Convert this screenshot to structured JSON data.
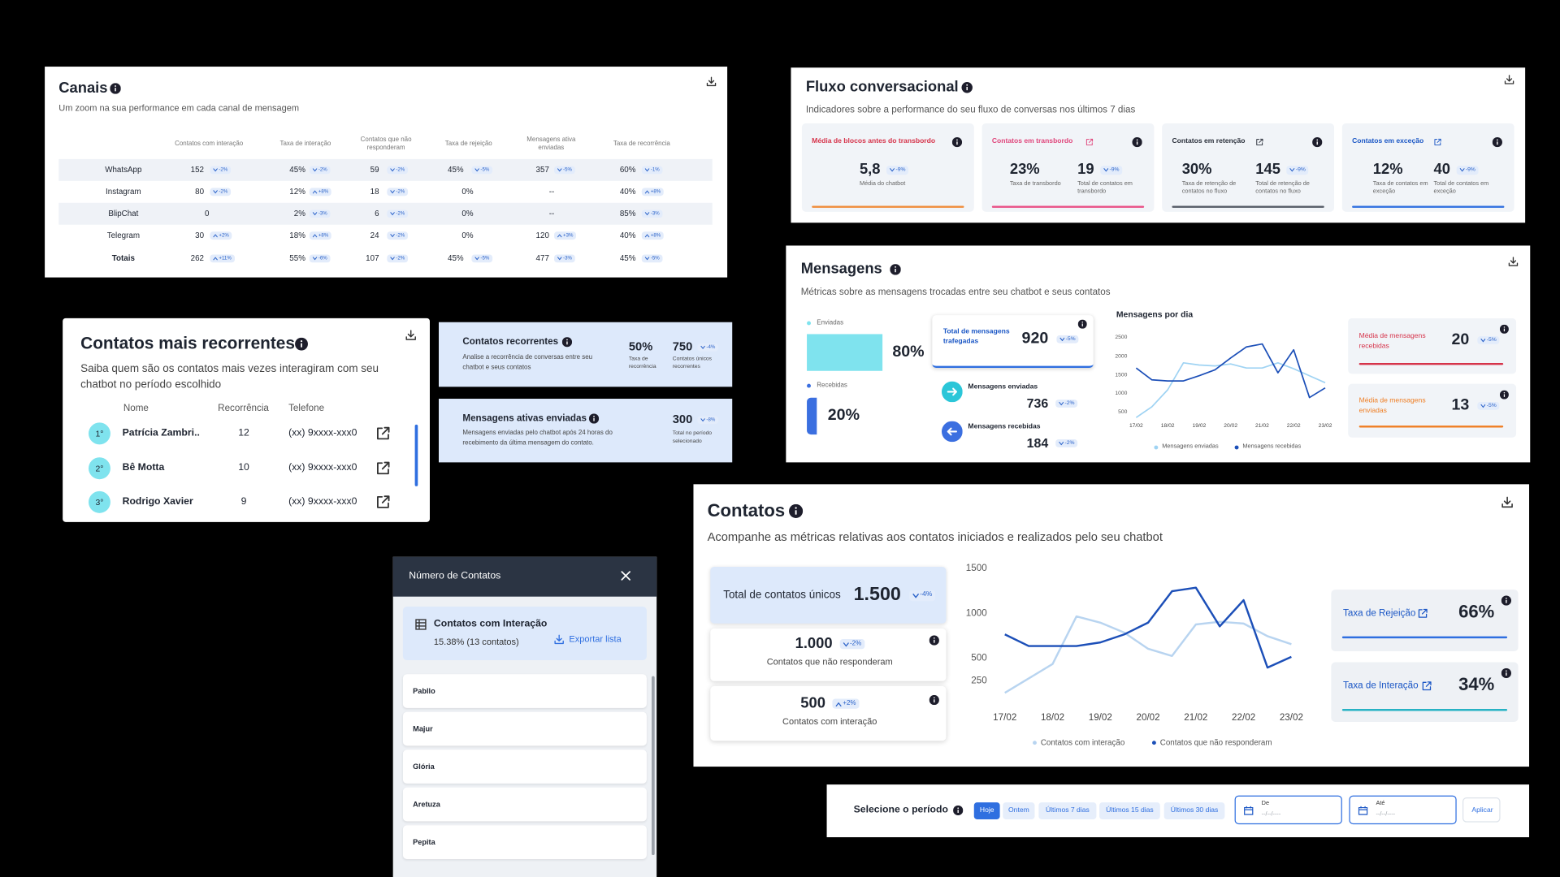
{
  "canais": {
    "title": "Canais",
    "subtitle": "Um zoom na sua performance em cada canal de mensagem",
    "columns": [
      "Contatos com interação",
      "Taxa de interação",
      "Contatos que não responderam",
      "Taxa de rejeição",
      "Mensagens ativa enviadas",
      "Taxa de recorrência"
    ],
    "rows": [
      {
        "name": "WhatsApp",
        "cells": [
          [
            "152",
            "-2%"
          ],
          [
            "45%",
            "-2%"
          ],
          [
            "59",
            "-2%"
          ],
          [
            "45%",
            "-5%"
          ],
          [
            "357",
            "-5%"
          ],
          [
            "60%",
            "-1%"
          ]
        ]
      },
      {
        "name": "Instagram",
        "cells": [
          [
            "80",
            "-2%"
          ],
          [
            "12%",
            "+8%"
          ],
          [
            "18",
            "-2%"
          ],
          [
            "0%"
          ],
          [
            "--"
          ],
          [
            "40%",
            "+8%"
          ]
        ]
      },
      {
        "name": "BlipChat",
        "cells": [
          [
            "0"
          ],
          [
            "2%",
            "-3%"
          ],
          [
            "6",
            "-2%"
          ],
          [
            "0%"
          ],
          [
            "--"
          ],
          [
            "85%",
            "-3%"
          ]
        ]
      },
      {
        "name": "Telegram",
        "cells": [
          [
            "30",
            "+2%"
          ],
          [
            "18%",
            "+8%"
          ],
          [
            "24",
            "-2%"
          ],
          [
            "0%"
          ],
          [
            "120",
            "+3%"
          ],
          [
            "40%",
            "+8%"
          ]
        ]
      },
      {
        "name": "Totais",
        "cells": [
          [
            "262",
            "+11%"
          ],
          [
            "55%",
            "-6%"
          ],
          [
            "107",
            "-2%"
          ],
          [
            "45%",
            "-5%"
          ],
          [
            "477",
            "-3%"
          ],
          [
            "45%",
            "-5%"
          ]
        ]
      }
    ]
  },
  "fluxo": {
    "title": "Fluxo conversacional",
    "subtitle": "Indicadores sobre a performance do seu fluxo de conversas nos últimos 7 dias",
    "cards": [
      {
        "title": "Média de blocos antes do transbordo",
        "metrics": [
          {
            "value": "5,8",
            "delta": "-9%",
            "label": "Média do chatbot"
          }
        ]
      },
      {
        "title": "Contatos em transbordo",
        "metrics": [
          {
            "value": "23%",
            "label": "Taxa de transbordo"
          },
          {
            "value": "19",
            "delta": "-9%",
            "label": "Total de contatos em transbordo"
          }
        ]
      },
      {
        "title": "Contatos em retenção",
        "metrics": [
          {
            "value": "30%",
            "label": "Taxa de retenção de contatos no fluxo"
          },
          {
            "value": "145",
            "delta": "-9%",
            "label": "Total de retenção de contatos no fluxo"
          }
        ]
      },
      {
        "title": "Contatos em exceção",
        "metrics": [
          {
            "value": "12%",
            "label": "Taxa de contatos em exceção"
          },
          {
            "value": "40",
            "delta": "-9%",
            "label": "Total de contatos em exceção"
          }
        ]
      }
    ]
  },
  "mensagens": {
    "title": "Mensagens",
    "subtitle": "Métricas sobre as mensagens trocadas entre seu chatbot e seus contatos",
    "split": [
      {
        "label": "Enviadas",
        "value": "80%"
      },
      {
        "label": "Recebidas",
        "value": "20%"
      }
    ],
    "total": {
      "label": "Total de mensagens trafegadas",
      "value": "920",
      "delta": "-5%"
    },
    "sent": {
      "label": "Mensagens enviadas",
      "value": "736",
      "delta": "-2%"
    },
    "received": {
      "label": "Mensagens recebidas",
      "value": "184",
      "delta": "-2%"
    },
    "chart": {
      "type": "line",
      "title": "Mensagens por dia",
      "categories": [
        "17/02",
        null,
        "18/02",
        null,
        "19/02",
        null,
        "20/02",
        null,
        "21/02",
        null,
        "22/02",
        null,
        "23/02"
      ],
      "series": [
        {
          "name": "Mensagens enviadas",
          "color": "#9fd3f3",
          "values": [
            360,
            650,
            1110,
            1840,
            1780,
            1755,
            1810,
            1700,
            1700,
            1840,
            1680,
            1490,
            1300
          ]
        },
        {
          "name": "Mensagens recebidas",
          "color": "#1c4fb8",
          "values": [
            1700,
            1380,
            1350,
            1350,
            1490,
            1650,
            1970,
            2270,
            2350,
            1570,
            2190,
            900,
            1160
          ]
        }
      ],
      "ylim": [
        250,
        2750
      ],
      "yticks": [
        500,
        1000,
        1500,
        2000,
        2500
      ]
    },
    "averages": [
      {
        "label": "Média de mensagens recebidas",
        "value": "20",
        "delta": "-5%"
      },
      {
        "label": "Média de mensagens enviadas",
        "value": "13",
        "delta": "-5%"
      }
    ]
  },
  "recorrentes": {
    "title": "Contatos mais recorrentes",
    "subtitle": "Saiba quem são os contatos mais vezes interagiram com seu chatbot no período escolhido",
    "headers": [
      "Nome",
      "Recorrência",
      "Telefone"
    ],
    "rows": [
      {
        "rank": "1°",
        "name": "Patrícia Zambri..",
        "count": "12",
        "phone": "(xx) 9xxxx-xxx0"
      },
      {
        "rank": "2°",
        "name": "Bê Motta",
        "count": "10",
        "phone": "(xx) 9xxxx-xxx0"
      },
      {
        "rank": "3°",
        "name": "Rodrigo Xavier",
        "count": "9",
        "phone": "(xx) 9xxxx-xxx0"
      }
    ]
  },
  "cards": [
    {
      "title": "Contatos recorrentes",
      "description": "Analise a recorrência de conversas entre seu chatbot e seus contatos",
      "metrics": [
        {
          "value": "50%",
          "label": "Taxa de recorrência"
        },
        {
          "value": "750",
          "delta": "-4%",
          "label": "Contatos únicos recorrentes"
        }
      ]
    },
    {
      "title": "Mensagens ativas enviadas",
      "description": "Mensagens enviadas pelo chatbot após 24 horas do recebimento da última mensagem do contato.",
      "metrics": [
        {
          "value": "300",
          "delta": "-8%",
          "label": "Total no período selecionado"
        }
      ]
    }
  ],
  "modal": {
    "title": "Número de Contatos",
    "card": {
      "title": "Contatos com Interação",
      "detail": "15.38% (13 contatos)",
      "action": "Exportar lista"
    },
    "items": [
      "Pabllo",
      "Majur",
      "Glória",
      "Aretuza",
      "Pepita"
    ]
  },
  "contatos": {
    "title": "Contatos",
    "subtitle": "Acompanhe as métricas relativas aos contatos iniciados e realizados pelo seu chatbot",
    "total": {
      "label": "Total de contatos únicos",
      "value": "1.500",
      "delta": "-4%"
    },
    "stats": [
      {
        "value": "1.000",
        "delta": "-2%",
        "label": "Contatos que não responderam"
      },
      {
        "value": "500",
        "delta": "+2%",
        "label": "Contatos com interação"
      }
    ],
    "chart": {
      "type": "line",
      "categories": [
        "17/02",
        null,
        "18/02",
        null,
        "19/02",
        null,
        "20/02",
        null,
        "21/02",
        null,
        "22/02",
        null,
        "23/02"
      ],
      "series": [
        {
          "name": "Contatos com interação",
          "color": "#b8d4f0",
          "values": [
            120,
            280,
            440,
            970,
            900,
            790,
            610,
            530,
            880,
            910,
            890,
            750,
            660
          ]
        },
        {
          "name": "Contatos que não responderam",
          "color": "#1c4fb8",
          "values": [
            770,
            640,
            640,
            640,
            680,
            770,
            900,
            1250,
            1290,
            860,
            1150,
            400,
            520
          ]
        }
      ],
      "ylim": [
        0,
        1750
      ],
      "yticks": [
        250,
        500,
        1000,
        1500
      ]
    },
    "rates": [
      {
        "label": "Taxa de Rejeição",
        "value": "66%"
      },
      {
        "label": "Taxa de Interação",
        "value": "34%"
      }
    ]
  },
  "periodo": {
    "label": "Selecione o período",
    "options": [
      "Hoje",
      "Ontem",
      "Últimos 7 dias",
      "Últimos 15 dias",
      "Últimos 30 dias"
    ],
    "active": 0,
    "inputs": [
      {
        "label": "De",
        "placeholder": "--/--/----"
      },
      {
        "label": "Até",
        "placeholder": "--/--/----"
      }
    ],
    "action": "Aplicar"
  }
}
